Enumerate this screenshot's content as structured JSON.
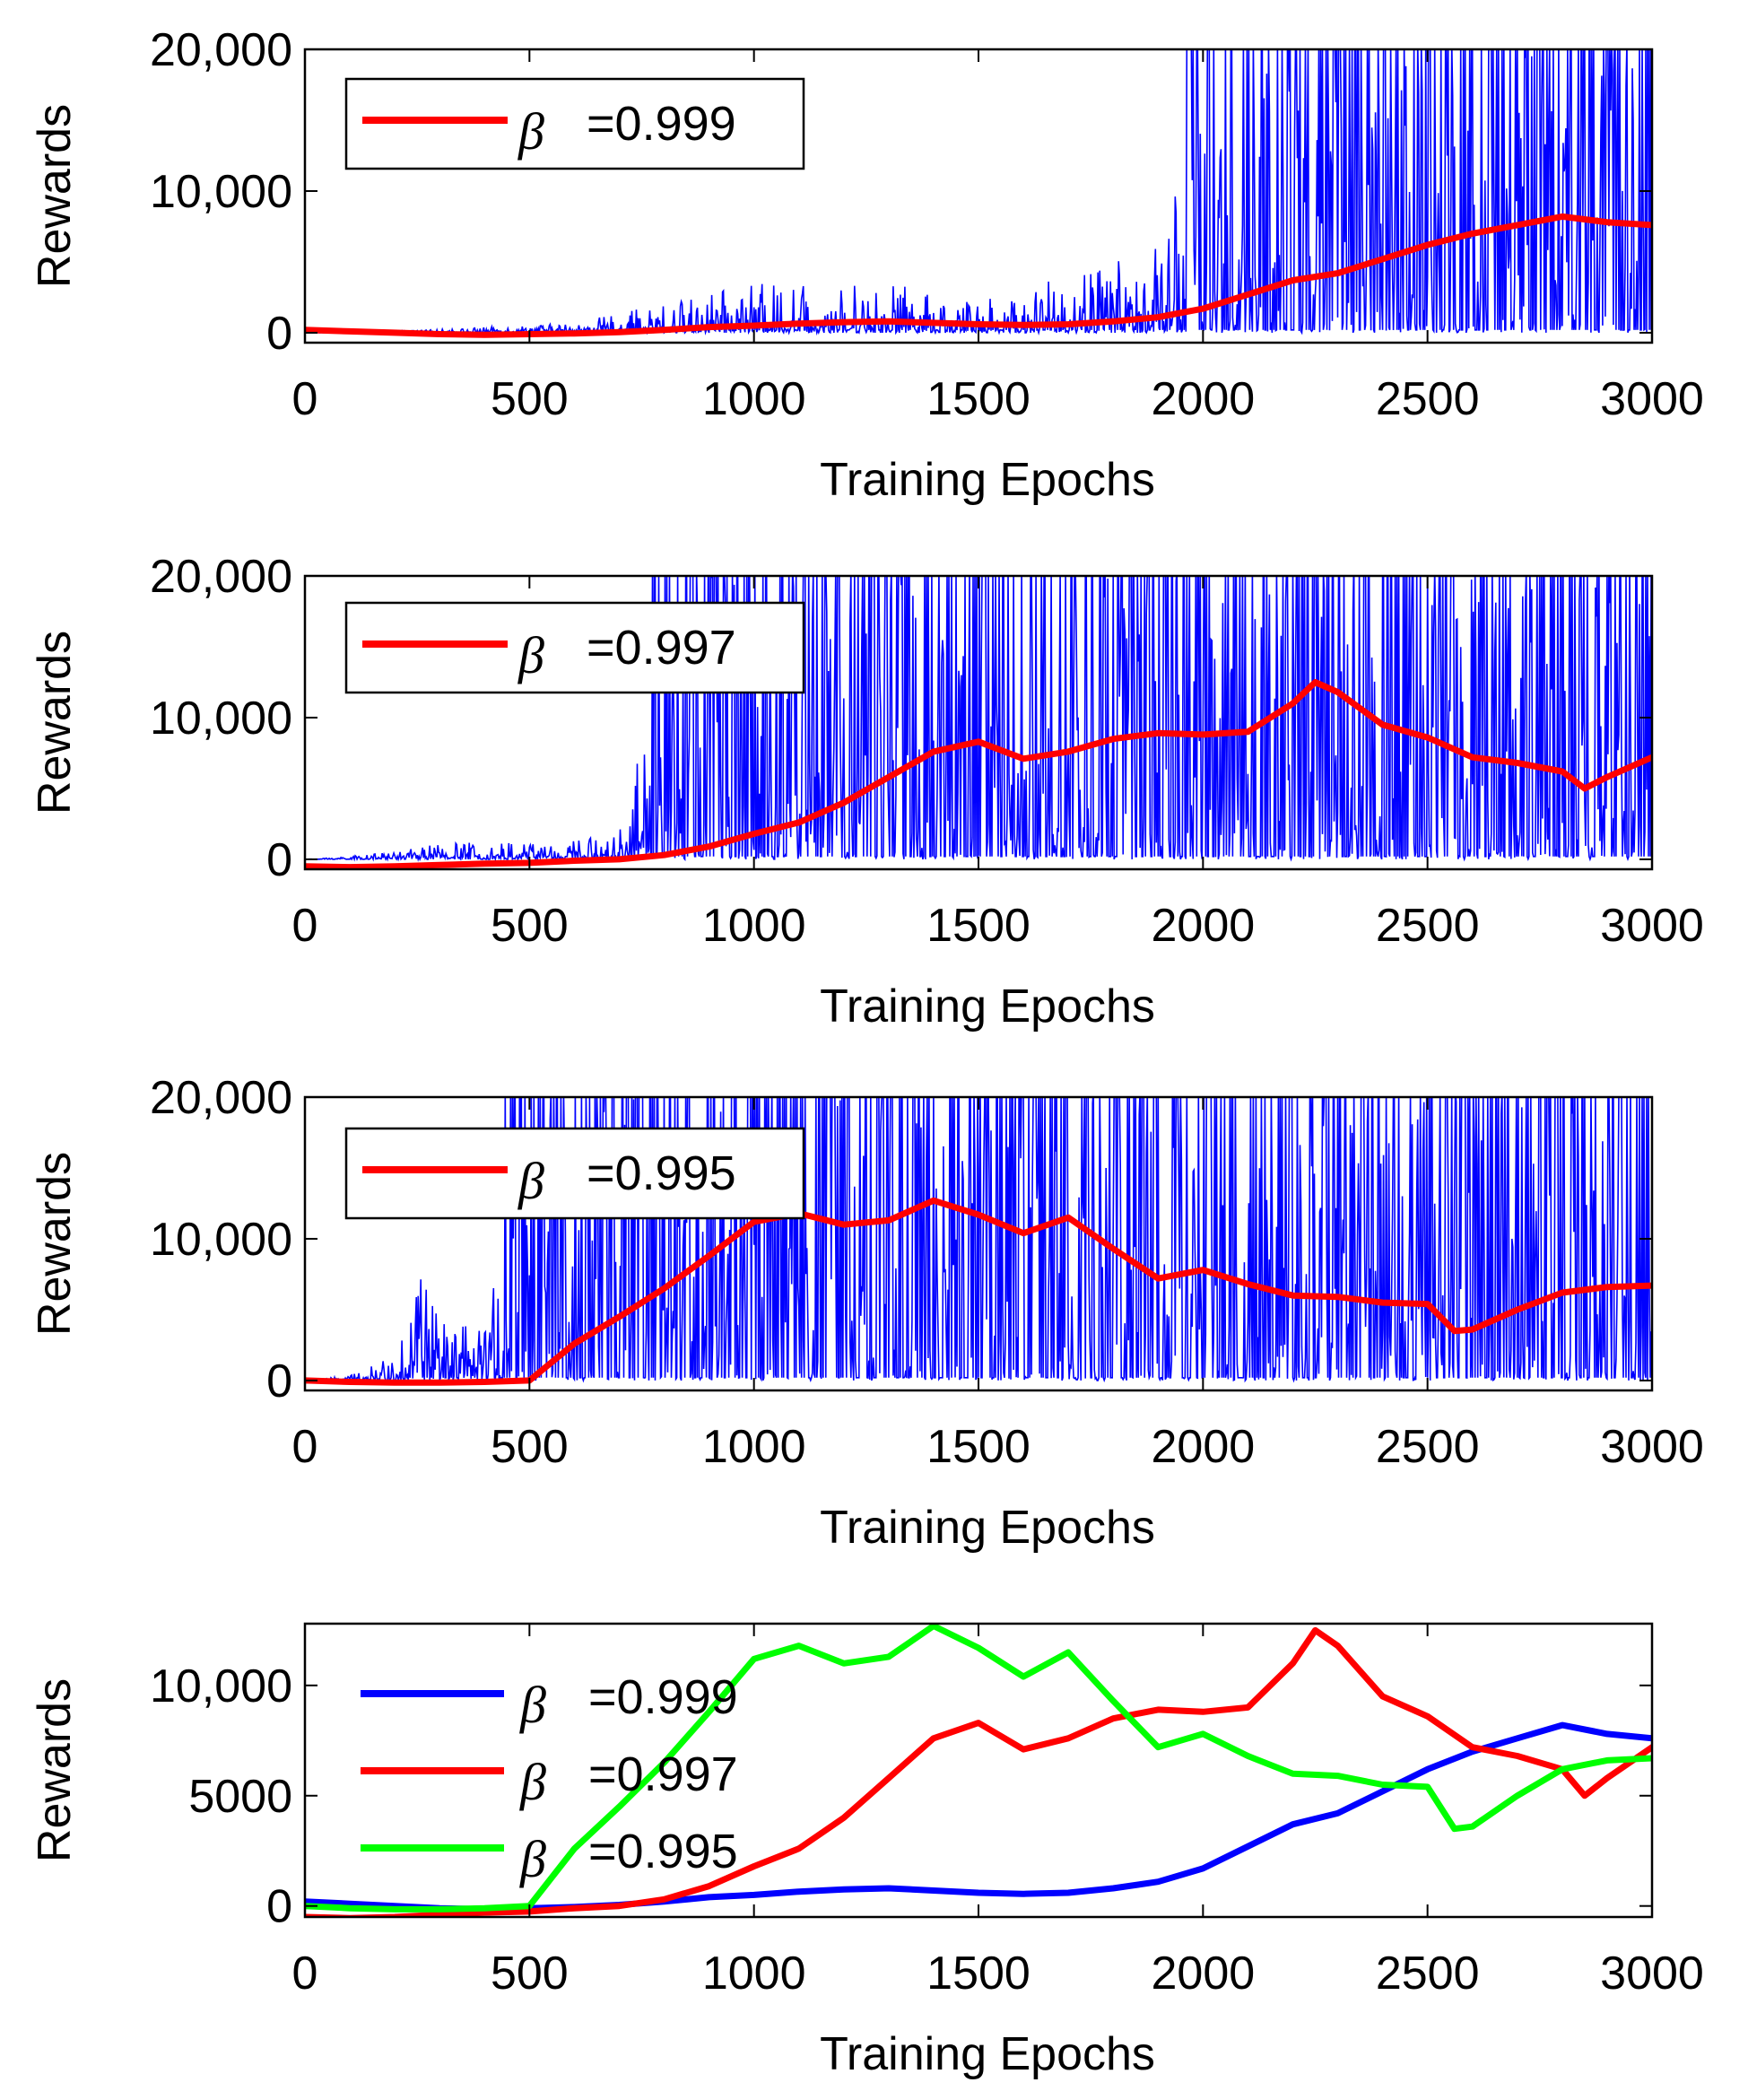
{
  "chart_data": [
    {
      "type": "line",
      "xlabel": "Training Epochs",
      "ylabel": "Rewards",
      "xlim": [
        0,
        3000
      ],
      "ylim": [
        -700,
        20000
      ],
      "xticks": [
        0,
        500,
        1000,
        1500,
        2000,
        2500,
        3000
      ],
      "xtick_labels": [
        "0",
        "500",
        "1000",
        "1500",
        "2000",
        "2500",
        "3000"
      ],
      "yticks": [
        0,
        10000,
        20000
      ],
      "ytick_labels": [
        "0",
        "10,000",
        "20,000"
      ],
      "raw_color": "#0000ff",
      "raw_activity": [
        [
          0,
          0
        ],
        [
          250,
          150
        ],
        [
          600,
          600
        ],
        [
          800,
          1800
        ],
        [
          1000,
          3000
        ],
        [
          1300,
          3200
        ],
        [
          1450,
          1800
        ],
        [
          1700,
          3500
        ],
        [
          1900,
          5500
        ],
        [
          2000,
          14000
        ],
        [
          2150,
          17000
        ],
        [
          2400,
          18000
        ],
        [
          2700,
          19000
        ],
        [
          3000,
          20000
        ]
      ],
      "legend": [
        {
          "symbol": "β",
          "label": "=0.999",
          "color": "#ff0000"
        }
      ],
      "series": [
        {
          "name": "β =0.999",
          "color": "#ff0000",
          "x": [
            0,
            100,
            200,
            300,
            400,
            500,
            600,
            700,
            800,
            900,
            1000,
            1100,
            1200,
            1300,
            1400,
            1500,
            1600,
            1700,
            1800,
            1900,
            2000,
            2100,
            2200,
            2300,
            2400,
            2500,
            2600,
            2700,
            2800,
            2900,
            3000
          ],
          "values": [
            200,
            100,
            0,
            -100,
            -150,
            -100,
            -50,
            50,
            200,
            400,
            500,
            650,
            750,
            800,
            700,
            600,
            550,
            600,
            800,
            1100,
            1700,
            2700,
            3700,
            4200,
            5200,
            6200,
            7000,
            7600,
            8200,
            7800,
            7600
          ]
        }
      ]
    },
    {
      "type": "line",
      "xlabel": "Training Epochs",
      "ylabel": "Rewards",
      "xlim": [
        0,
        3000
      ],
      "ylim": [
        -700,
        20000
      ],
      "xticks": [
        0,
        500,
        1000,
        1500,
        2000,
        2500,
        3000
      ],
      "xtick_labels": [
        "0",
        "500",
        "1000",
        "1500",
        "2000",
        "2500",
        "3000"
      ],
      "yticks": [
        0,
        10000,
        20000
      ],
      "ytick_labels": [
        "0",
        "10,000",
        "20,000"
      ],
      "raw_color": "#0000ff",
      "raw_activity": [
        [
          0,
          0
        ],
        [
          150,
          300
        ],
        [
          300,
          1000
        ],
        [
          600,
          1200
        ],
        [
          700,
          1800
        ],
        [
          780,
          10000
        ],
        [
          900,
          18000
        ],
        [
          1100,
          19000
        ],
        [
          1400,
          20000
        ],
        [
          1550,
          9000
        ],
        [
          1650,
          12000
        ],
        [
          1800,
          20000
        ],
        [
          2100,
          16000
        ],
        [
          2300,
          20000
        ],
        [
          2500,
          17000
        ],
        [
          2700,
          18000
        ],
        [
          3000,
          20000
        ]
      ],
      "legend": [
        {
          "symbol": "β",
          "label": "=0.997",
          "color": "#ff0000"
        }
      ],
      "series": [
        {
          "name": "β =0.997",
          "color": "#ff0000",
          "x": [
            0,
            100,
            200,
            300,
            400,
            500,
            600,
            700,
            800,
            900,
            1000,
            1100,
            1200,
            1300,
            1400,
            1500,
            1600,
            1700,
            1800,
            1900,
            2000,
            2100,
            2200,
            2250,
            2300,
            2400,
            2500,
            2600,
            2700,
            2800,
            2850,
            2900,
            3000
          ],
          "values": [
            -500,
            -550,
            -500,
            -400,
            -300,
            -250,
            -100,
            0,
            300,
            900,
            1800,
            2600,
            4000,
            5800,
            7600,
            8300,
            7100,
            7600,
            8500,
            8900,
            8800,
            9000,
            11000,
            12500,
            11800,
            9500,
            8600,
            7200,
            6800,
            6200,
            5000,
            5800,
            7200
          ]
        }
      ]
    },
    {
      "type": "line",
      "xlabel": "Training Epochs",
      "ylabel": "Rewards",
      "xlim": [
        0,
        3000
      ],
      "ylim": [
        -700,
        20000
      ],
      "xticks": [
        0,
        500,
        1000,
        1500,
        2000,
        2500,
        3000
      ],
      "xtick_labels": [
        "0",
        "500",
        "1000",
        "1500",
        "2000",
        "2500",
        "3000"
      ],
      "yticks": [
        0,
        10000,
        20000
      ],
      "ytick_labels": [
        "0",
        "10,000",
        "20,000"
      ],
      "raw_color": "#0000ff",
      "raw_activity": [
        [
          0,
          0
        ],
        [
          100,
          300
        ],
        [
          200,
          1500
        ],
        [
          250,
          8000
        ],
        [
          300,
          4000
        ],
        [
          400,
          3000
        ],
        [
          450,
          10000
        ],
        [
          500,
          20000
        ],
        [
          1000,
          20000
        ],
        [
          1500,
          20000
        ],
        [
          2000,
          19000
        ],
        [
          2300,
          17000
        ],
        [
          2600,
          18000
        ],
        [
          3000,
          20000
        ]
      ],
      "legend": [
        {
          "symbol": "β",
          "label": "=0.995",
          "color": "#ff0000"
        }
      ],
      "series": [
        {
          "name": "β =0.995",
          "color": "#ff0000",
          "x": [
            0,
            100,
            200,
            300,
            400,
            500,
            600,
            700,
            800,
            900,
            1000,
            1100,
            1200,
            1300,
            1400,
            1500,
            1600,
            1700,
            1800,
            1900,
            2000,
            2100,
            2200,
            2300,
            2400,
            2500,
            2560,
            2600,
            2700,
            2800,
            2900,
            3000
          ],
          "values": [
            0,
            -100,
            -150,
            -150,
            -100,
            0,
            2600,
            4500,
            6500,
            8800,
            11200,
            11800,
            11000,
            11300,
            12700,
            11700,
            10400,
            11500,
            9300,
            7200,
            7800,
            6800,
            6000,
            5900,
            5500,
            5400,
            3500,
            3600,
            5000,
            6200,
            6600,
            6700
          ]
        }
      ]
    },
    {
      "type": "line",
      "xlabel": "Training Epochs",
      "ylabel": "Rewards",
      "xlim": [
        0,
        3000
      ],
      "ylim": [
        -500,
        12800
      ],
      "xticks": [
        0,
        500,
        1000,
        1500,
        2000,
        2500,
        3000
      ],
      "xtick_labels": [
        "0",
        "500",
        "1000",
        "1500",
        "2000",
        "2500",
        "3000"
      ],
      "yticks": [
        0,
        5000,
        10000
      ],
      "ytick_labels": [
        "0",
        "5000",
        "10,000"
      ],
      "legend": [
        {
          "symbol": "β",
          "label": "=0.999",
          "color": "#0000ff"
        },
        {
          "symbol": "β",
          "label": "=0.997",
          "color": "#ff0000"
        },
        {
          "symbol": "β",
          "label": "=0.995",
          "color": "#00ff00"
        }
      ],
      "series": [
        {
          "name": "β =0.999",
          "color": "#0000ff",
          "x": [
            0,
            100,
            200,
            300,
            400,
            500,
            600,
            700,
            800,
            900,
            1000,
            1100,
            1200,
            1300,
            1400,
            1500,
            1600,
            1700,
            1800,
            1900,
            2000,
            2100,
            2200,
            2300,
            2400,
            2500,
            2600,
            2700,
            2800,
            2900,
            3000
          ],
          "values": [
            200,
            100,
            0,
            -100,
            -150,
            -100,
            -50,
            50,
            200,
            400,
            500,
            650,
            750,
            800,
            700,
            600,
            550,
            600,
            800,
            1100,
            1700,
            2700,
            3700,
            4200,
            5200,
            6200,
            7000,
            7600,
            8200,
            7800,
            7600
          ]
        },
        {
          "name": "β =0.997",
          "color": "#ff0000",
          "x": [
            0,
            100,
            200,
            300,
            400,
            500,
            600,
            700,
            800,
            900,
            1000,
            1100,
            1200,
            1300,
            1400,
            1500,
            1600,
            1700,
            1800,
            1900,
            2000,
            2100,
            2200,
            2250,
            2300,
            2400,
            2500,
            2600,
            2700,
            2800,
            2850,
            2900,
            3000
          ],
          "values": [
            -500,
            -550,
            -500,
            -400,
            -300,
            -250,
            -100,
            0,
            300,
            900,
            1800,
            2600,
            4000,
            5800,
            7600,
            8300,
            7100,
            7600,
            8500,
            8900,
            8800,
            9000,
            11000,
            12500,
            11800,
            9500,
            8600,
            7200,
            6800,
            6200,
            5000,
            5800,
            7200
          ]
        },
        {
          "name": "β =0.995",
          "color": "#00ff00",
          "x": [
            0,
            100,
            200,
            300,
            400,
            500,
            600,
            700,
            800,
            900,
            1000,
            1100,
            1200,
            1300,
            1400,
            1500,
            1600,
            1700,
            1800,
            1900,
            2000,
            2100,
            2200,
            2300,
            2400,
            2500,
            2560,
            2600,
            2700,
            2800,
            2900,
            3000
          ],
          "values": [
            0,
            -100,
            -150,
            -150,
            -100,
            0,
            2600,
            4500,
            6500,
            8800,
            11200,
            11800,
            11000,
            11300,
            12700,
            11700,
            10400,
            11500,
            9300,
            7200,
            7800,
            6800,
            6000,
            5900,
            5500,
            5400,
            3500,
            3600,
            5000,
            6200,
            6600,
            6700
          ]
        }
      ]
    }
  ]
}
